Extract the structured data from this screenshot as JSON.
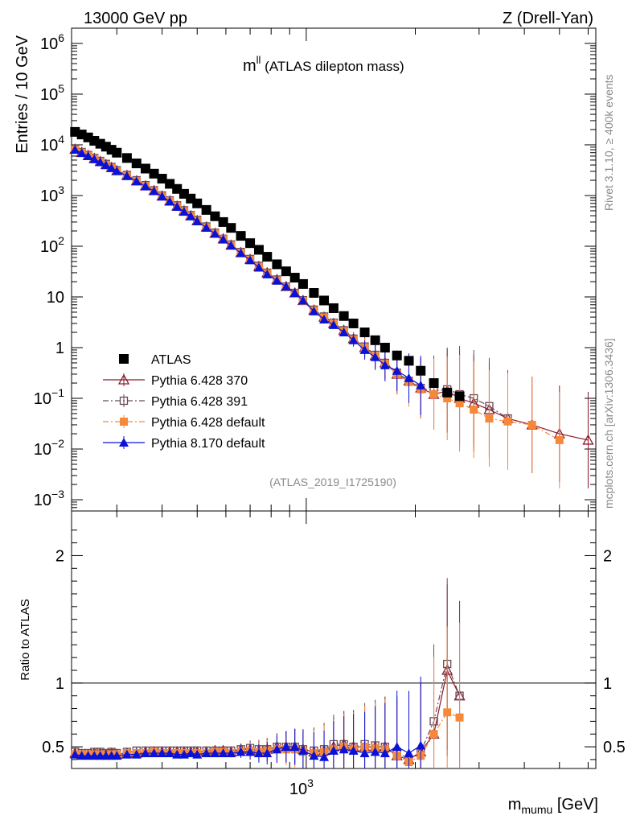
{
  "header": {
    "left": "13000 GeV pp",
    "right": "Z (Drell-Yan)"
  },
  "plot_title": {
    "main": "m",
    "sup": "ll",
    "rest": " (ATLAS dilepton mass)"
  },
  "side_labels": {
    "rivet": "Rivet 3.1.10, ≥ 400k events",
    "mcplots": "mcplots.cern.ch [arXiv:1306.3436]"
  },
  "analysis_id": "(ATLAS_2019_I1725190)",
  "chart_data": [
    {
      "type": "scatter",
      "ylabel": "Entries / 10 GeV",
      "yscale": "log",
      "xscale": "log",
      "xlim": [
        225,
        6300
      ],
      "ylim": [
        0.0006,
        2000000
      ],
      "y_tick_labels": [
        {
          "v": 1000000.0,
          "base": "10",
          "exp": "6"
        },
        {
          "v": 100000.0,
          "base": "10",
          "exp": "5"
        },
        {
          "v": 10000.0,
          "base": "10",
          "exp": "4"
        },
        {
          "v": 1000.0,
          "base": "10",
          "exp": "3"
        },
        {
          "v": 100.0,
          "base": "10",
          "exp": "2"
        },
        {
          "v": 10,
          "base": "10",
          "exp": ""
        },
        {
          "v": 1,
          "base": "1",
          "exp": ""
        },
        {
          "v": 0.1,
          "base": "10",
          "exp": "−1"
        },
        {
          "v": 0.01,
          "base": "10",
          "exp": "−2"
        },
        {
          "v": 0.001,
          "base": "10",
          "exp": "−3"
        }
      ],
      "legend_position": "lower-left",
      "series": [
        {
          "name": "ATLAS",
          "color": "#000000",
          "marker": "square-filled",
          "x": [
            230,
            240,
            250,
            260,
            270,
            280,
            290,
            300,
            320,
            340,
            360,
            380,
            400,
            420,
            440,
            460,
            480,
            500,
            530,
            560,
            590,
            620,
            660,
            700,
            740,
            780,
            830,
            880,
            930,
            980,
            1050,
            1120,
            1190,
            1270,
            1350,
            1450,
            1550,
            1650,
            1780,
            1920,
            2070,
            2250,
            2450,
            2650
          ],
          "y": [
            18000,
            16000,
            14000,
            12000,
            10500,
            9200,
            8000,
            7000,
            5500,
            4300,
            3400,
            2700,
            2150,
            1700,
            1350,
            1080,
            870,
            700,
            520,
            390,
            300,
            230,
            160,
            115,
            85,
            62,
            44,
            32,
            24,
            18,
            12,
            8.5,
            6,
            4.2,
            3,
            2,
            1.4,
            1,
            0.7,
            0.55,
            0.35,
            0.2,
            0.13,
            0.11
          ]
        },
        {
          "name": "Pythia 6.428 370",
          "color": "#8b1a2b",
          "marker": "triangle-open",
          "line": "solid",
          "x": [
            230,
            240,
            250,
            260,
            270,
            280,
            290,
            300,
            320,
            340,
            360,
            380,
            400,
            420,
            440,
            460,
            480,
            500,
            530,
            560,
            590,
            620,
            660,
            700,
            740,
            780,
            830,
            880,
            930,
            980,
            1050,
            1120,
            1190,
            1270,
            1350,
            1450,
            1550,
            1650,
            1780,
            1920,
            2070,
            2250,
            2450,
            2650,
            2900,
            3200,
            3600,
            4200,
            5000,
            6000
          ],
          "y": [
            8200,
            7100,
            6200,
            5400,
            4700,
            4100,
            3600,
            3100,
            2500,
            1950,
            1550,
            1250,
            980,
            780,
            620,
            500,
            400,
            320,
            240,
            180,
            140,
            105,
            75,
            55,
            40,
            30,
            22,
            16,
            12,
            8.5,
            5.5,
            4,
            3,
            2.2,
            1.5,
            1,
            0.7,
            0.5,
            0.3,
            0.22,
            0.16,
            0.12,
            0.14,
            0.1,
            0.08,
            0.06,
            0.04,
            0.03,
            0.02,
            0.015
          ]
        },
        {
          "name": "Pythia 6.428 391",
          "color": "#6b4a55",
          "marker": "square-open",
          "line": "dashdot",
          "x": [
            230,
            240,
            250,
            260,
            270,
            280,
            290,
            300,
            320,
            340,
            360,
            380,
            400,
            420,
            440,
            460,
            480,
            500,
            530,
            560,
            590,
            620,
            660,
            700,
            740,
            780,
            830,
            880,
            930,
            980,
            1050,
            1120,
            1190,
            1270,
            1350,
            1450,
            1550,
            1650,
            1780,
            1920,
            2070,
            2250,
            2450,
            2650,
            2900,
            3200,
            3600
          ],
          "y": [
            8300,
            7200,
            6300,
            5500,
            4800,
            4200,
            3650,
            3150,
            2550,
            2000,
            1600,
            1270,
            1000,
            800,
            640,
            510,
            410,
            330,
            245,
            185,
            140,
            108,
            77,
            56,
            41,
            30,
            22,
            16,
            12,
            8.6,
            5.6,
            4.1,
            3.1,
            2.2,
            1.5,
            1.05,
            0.72,
            0.5,
            0.32,
            0.22,
            0.16,
            0.14,
            0.15,
            0.12,
            0.1,
            0.07,
            0.04
          ]
        },
        {
          "name": "Pythia 6.428 default",
          "color": "#f7883a",
          "marker": "square-filled",
          "line": "dashdot",
          "x": [
            230,
            240,
            250,
            260,
            270,
            280,
            290,
            300,
            320,
            340,
            360,
            380,
            400,
            420,
            440,
            460,
            480,
            500,
            530,
            560,
            590,
            620,
            660,
            700,
            740,
            780,
            830,
            880,
            930,
            980,
            1050,
            1120,
            1190,
            1270,
            1350,
            1450,
            1550,
            1650,
            1780,
            1920,
            2070,
            2250,
            2450,
            2650,
            2900,
            3200,
            3600,
            4200,
            5000
          ],
          "y": [
            8000,
            7000,
            6100,
            5300,
            4600,
            4000,
            3500,
            3050,
            2450,
            1930,
            1530,
            1230,
            970,
            770,
            610,
            490,
            395,
            315,
            235,
            178,
            137,
            104,
            74,
            54,
            39,
            29,
            21,
            15.5,
            11.5,
            8.3,
            5.4,
            3.9,
            2.9,
            2.1,
            1.45,
            1,
            0.68,
            0.48,
            0.3,
            0.21,
            0.15,
            0.12,
            0.1,
            0.08,
            0.06,
            0.04,
            0.035,
            0.03,
            0.015
          ]
        },
        {
          "name": "Pythia 8.170 default",
          "color": "#0a12d8",
          "marker": "triangle-filled",
          "line": "solid",
          "x": [
            230,
            240,
            250,
            260,
            270,
            280,
            290,
            300,
            320,
            340,
            360,
            380,
            400,
            420,
            440,
            460,
            480,
            500,
            530,
            560,
            590,
            620,
            660,
            700,
            740,
            780,
            830,
            880,
            930,
            980,
            1050,
            1120,
            1190,
            1270,
            1350,
            1450,
            1550,
            1650,
            1780,
            1920,
            2070
          ],
          "y": [
            8000,
            6900,
            6000,
            5200,
            4550,
            3980,
            3480,
            3030,
            2430,
            1910,
            1520,
            1220,
            960,
            760,
            600,
            480,
            390,
            310,
            232,
            176,
            136,
            103,
            73,
            53,
            38,
            28,
            21,
            16,
            12,
            8.5,
            5.2,
            3.6,
            2.8,
            2.0,
            1.4,
            0.9,
            0.65,
            0.45,
            0.35,
            0.25,
            0.18
          ]
        }
      ]
    },
    {
      "type": "scatter",
      "ylabel": "Ratio to ATLAS",
      "xlabel": "m",
      "xlabel_sub": "mumu",
      "xlabel_unit": " [GeV]",
      "xscale": "log",
      "xlim": [
        225,
        6300
      ],
      "ylim": [
        0.33,
        2.35
      ],
      "y_ticks": [
        0.5,
        1,
        2
      ],
      "y_tick_labels": [
        "0.5",
        "1",
        "2"
      ],
      "x_tick_label": {
        "v": 1000,
        "base": "10",
        "exp": "3"
      },
      "reference_line": 1,
      "series": [
        {
          "name": "Pythia 6.428 370",
          "color": "#8b1a2b",
          "x": [
            230,
            240,
            250,
            260,
            270,
            280,
            290,
            300,
            320,
            340,
            360,
            380,
            400,
            420,
            440,
            460,
            480,
            500,
            530,
            560,
            590,
            620,
            660,
            700,
            740,
            780,
            830,
            880,
            930,
            980,
            1050,
            1120,
            1190,
            1270,
            1350,
            1450,
            1550,
            1650,
            1780,
            1920,
            2070,
            2250,
            2450,
            2650
          ],
          "y": [
            0.45,
            0.44,
            0.44,
            0.45,
            0.45,
            0.44,
            0.45,
            0.44,
            0.45,
            0.45,
            0.46,
            0.46,
            0.46,
            0.46,
            0.46,
            0.46,
            0.46,
            0.46,
            0.46,
            0.47,
            0.47,
            0.46,
            0.48,
            0.48,
            0.47,
            0.48,
            0.5,
            0.5,
            0.5,
            0.48,
            0.46,
            0.47,
            0.5,
            0.52,
            0.5,
            0.5,
            0.5,
            0.5,
            0.43,
            0.4,
            0.46,
            0.6,
            1.1,
            0.9
          ]
        },
        {
          "name": "Pythia 6.428 391",
          "color": "#6b4a55",
          "x": [
            230,
            240,
            250,
            260,
            270,
            280,
            290,
            300,
            320,
            340,
            360,
            380,
            400,
            420,
            440,
            460,
            480,
            500,
            530,
            560,
            590,
            620,
            660,
            700,
            740,
            780,
            830,
            880,
            930,
            980,
            1050,
            1120,
            1190,
            1270,
            1350,
            1450,
            1550,
            1650,
            1780,
            1920,
            2070,
            2250,
            2450,
            2650
          ],
          "y": [
            0.46,
            0.45,
            0.45,
            0.46,
            0.46,
            0.45,
            0.46,
            0.45,
            0.46,
            0.47,
            0.47,
            0.47,
            0.47,
            0.47,
            0.47,
            0.47,
            0.47,
            0.47,
            0.47,
            0.47,
            0.47,
            0.47,
            0.48,
            0.49,
            0.48,
            0.48,
            0.5,
            0.5,
            0.5,
            0.48,
            0.47,
            0.48,
            0.52,
            0.52,
            0.5,
            0.52,
            0.51,
            0.5,
            0.46,
            0.4,
            0.46,
            0.7,
            1.15,
            0.9
          ]
        },
        {
          "name": "Pythia 6.428 default",
          "color": "#f7883a",
          "x": [
            230,
            240,
            250,
            260,
            270,
            280,
            290,
            300,
            320,
            340,
            360,
            380,
            400,
            420,
            440,
            460,
            480,
            500,
            530,
            560,
            590,
            620,
            660,
            700,
            740,
            780,
            830,
            880,
            930,
            980,
            1050,
            1120,
            1190,
            1270,
            1350,
            1450,
            1550,
            1650,
            1780,
            1920,
            2070,
            2250,
            2450,
            2650
          ],
          "y": [
            0.44,
            0.44,
            0.44,
            0.44,
            0.44,
            0.43,
            0.44,
            0.44,
            0.45,
            0.45,
            0.45,
            0.46,
            0.45,
            0.45,
            0.45,
            0.45,
            0.45,
            0.45,
            0.45,
            0.46,
            0.46,
            0.45,
            0.46,
            0.47,
            0.46,
            0.47,
            0.48,
            0.48,
            0.48,
            0.46,
            0.45,
            0.46,
            0.48,
            0.5,
            0.48,
            0.5,
            0.49,
            0.48,
            0.43,
            0.38,
            0.43,
            0.6,
            0.77,
            0.73
          ]
        },
        {
          "name": "Pythia 8.170 default",
          "color": "#0a12d8",
          "x": [
            230,
            240,
            250,
            260,
            270,
            280,
            290,
            300,
            320,
            340,
            360,
            380,
            400,
            420,
            440,
            460,
            480,
            500,
            530,
            560,
            590,
            620,
            660,
            700,
            740,
            780,
            830,
            880,
            930,
            980,
            1050,
            1120,
            1190,
            1270,
            1350,
            1450,
            1550,
            1650,
            1780,
            1920,
            2070
          ],
          "y": [
            0.44,
            0.43,
            0.43,
            0.43,
            0.43,
            0.43,
            0.43,
            0.43,
            0.44,
            0.44,
            0.45,
            0.45,
            0.45,
            0.45,
            0.44,
            0.44,
            0.45,
            0.44,
            0.45,
            0.45,
            0.45,
            0.45,
            0.46,
            0.46,
            0.45,
            0.45,
            0.48,
            0.5,
            0.5,
            0.47,
            0.43,
            0.42,
            0.47,
            0.48,
            0.47,
            0.45,
            0.46,
            0.45,
            0.5,
            0.45,
            0.51
          ]
        }
      ]
    }
  ]
}
